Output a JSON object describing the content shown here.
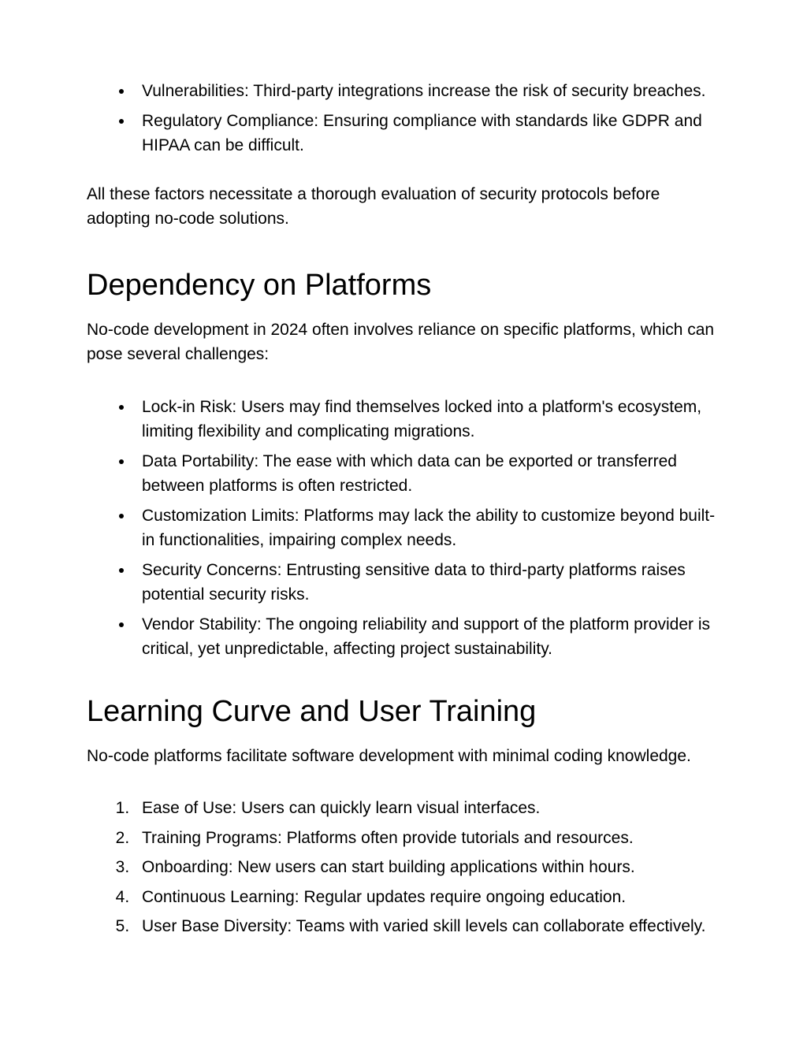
{
  "intro": {
    "bullets": [
      "Vulnerabilities: Third-party integrations increase the risk of security breaches.",
      "Regulatory Compliance: Ensuring compliance with standards like GDPR and HIPAA can be difficult."
    ],
    "closing": "All these factors necessitate a thorough evaluation of security protocols before adopting no-code solutions."
  },
  "section1": {
    "heading": "Dependency on Platforms",
    "intro": "No-code development in 2024 often involves reliance on specific platforms, which can pose several challenges:",
    "bullets": [
      "Lock-in Risk: Users may find themselves locked into a platform's ecosystem, limiting flexibility and complicating migrations.",
      "Data Portability: The ease with which data can be exported or transferred between platforms is often restricted.",
      "Customization Limits: Platforms may lack the ability to customize beyond built-in functionalities, impairing complex needs.",
      "Security Concerns: Entrusting sensitive data to third-party platforms raises potential security risks.",
      "Vendor Stability: The ongoing reliability and support of the platform provider is critical, yet unpredictable, affecting project sustainability."
    ]
  },
  "section2": {
    "heading": "Learning Curve and User Training",
    "intro": "No-code platforms facilitate software development with minimal coding knowledge.",
    "items": [
      "Ease of Use: Users can quickly learn visual interfaces.",
      "Training Programs: Platforms often provide tutorials and resources.",
      "Onboarding: New users can start building applications within hours.",
      "Continuous Learning: Regular updates require ongoing education.",
      "User Base Diversity: Teams with varied skill levels can collaborate effectively."
    ]
  }
}
